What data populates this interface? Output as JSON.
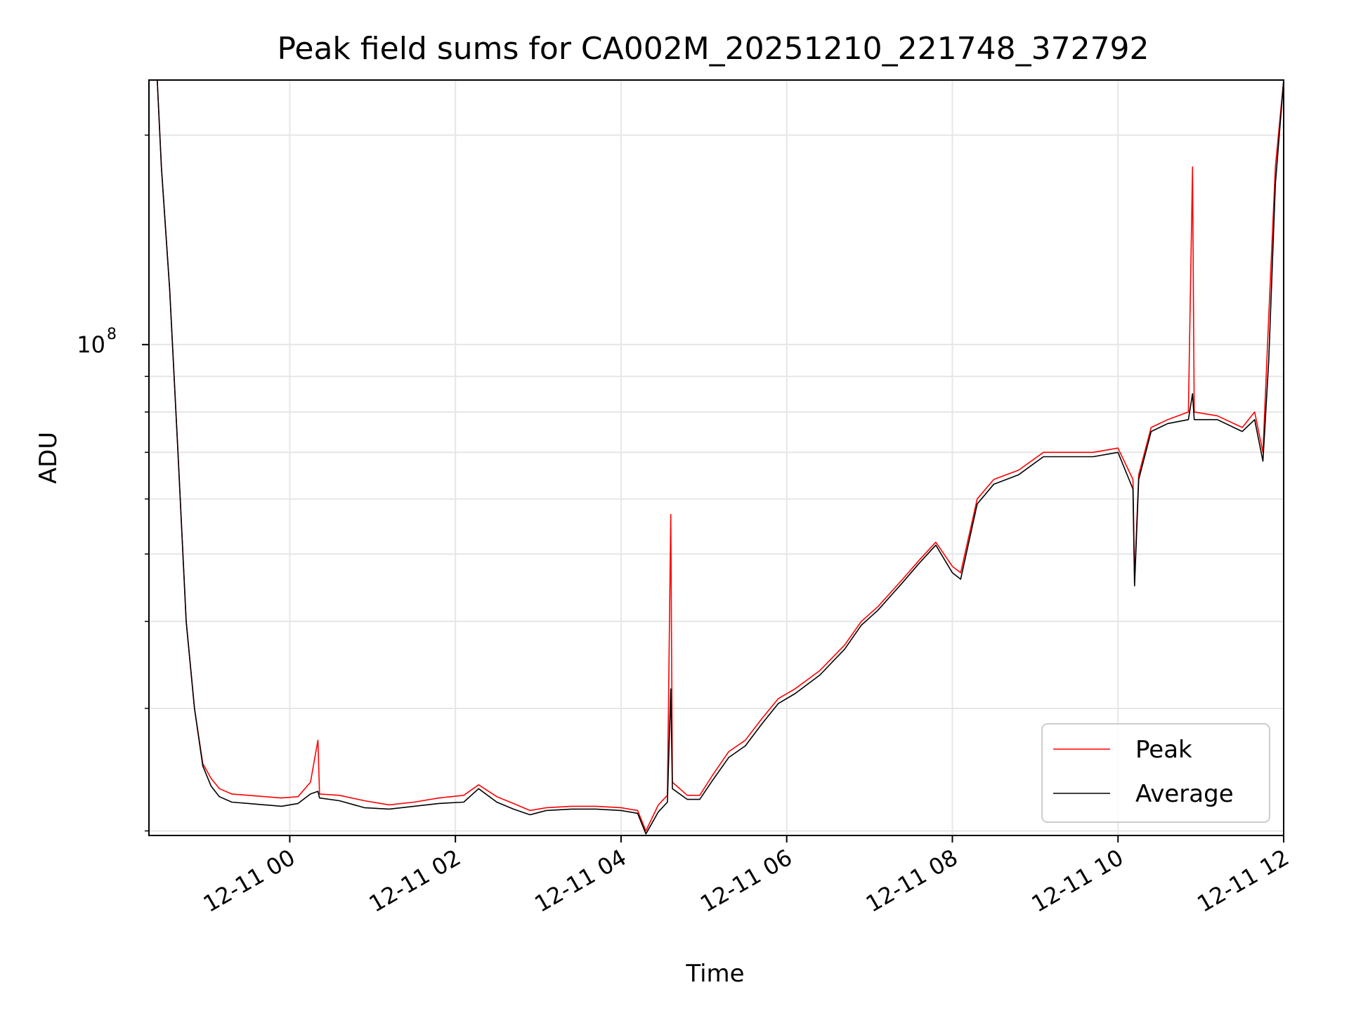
{
  "chart_data": {
    "type": "line",
    "title": "Peak field sums for CA002M_20251210_221748_372792",
    "xlabel": "Time",
    "ylabel": "ADU",
    "x_unit": "hours since 12-11 00:00",
    "xlim": [
      -1.7,
      12.0
    ],
    "yscale": "log",
    "ylim": [
      19700000,
      240000000
    ],
    "x_ticks": [
      {
        "value": 0,
        "label": "12-11 00"
      },
      {
        "value": 2,
        "label": "12-11 02"
      },
      {
        "value": 4,
        "label": "12-11 04"
      },
      {
        "value": 6,
        "label": "12-11 06"
      },
      {
        "value": 8,
        "label": "12-11 08"
      },
      {
        "value": 10,
        "label": "12-11 10"
      },
      {
        "value": 12,
        "label": "12-11 12"
      }
    ],
    "y_ticks_major": [
      {
        "value": 100000000,
        "base": "10",
        "exponent": "8"
      }
    ],
    "y_ticks_minor": [
      20000000,
      30000000,
      40000000,
      50000000,
      60000000,
      70000000,
      80000000,
      90000000,
      200000000
    ],
    "grid": true,
    "legend_position": "lower-right",
    "series": [
      {
        "name": "Peak",
        "color": "#ff0000",
        "points": [
          [
            -1.7,
            240000000
          ],
          [
            -1.6,
            240000000
          ],
          [
            -1.55,
            180000000
          ],
          [
            -1.45,
            120000000
          ],
          [
            -1.35,
            70000000
          ],
          [
            -1.25,
            40000000
          ],
          [
            -1.15,
            30000000
          ],
          [
            -1.05,
            25000000
          ],
          [
            -0.95,
            23800000
          ],
          [
            -0.85,
            23000000
          ],
          [
            -0.7,
            22600000
          ],
          [
            -0.5,
            22500000
          ],
          [
            -0.3,
            22400000
          ],
          [
            -0.1,
            22300000
          ],
          [
            0.1,
            22400000
          ],
          [
            0.25,
            23500000
          ],
          [
            0.34,
            27000000
          ],
          [
            0.36,
            22600000
          ],
          [
            0.6,
            22500000
          ],
          [
            0.9,
            22100000
          ],
          [
            1.2,
            21800000
          ],
          [
            1.5,
            22000000
          ],
          [
            1.8,
            22300000
          ],
          [
            2.1,
            22500000
          ],
          [
            2.28,
            23300000
          ],
          [
            2.5,
            22400000
          ],
          [
            2.7,
            21900000
          ],
          [
            2.9,
            21400000
          ],
          [
            3.1,
            21600000
          ],
          [
            3.4,
            21700000
          ],
          [
            3.7,
            21700000
          ],
          [
            4.0,
            21600000
          ],
          [
            4.2,
            21400000
          ],
          [
            4.3,
            20000000
          ],
          [
            4.45,
            21800000
          ],
          [
            4.56,
            22500000
          ],
          [
            4.6,
            57000000
          ],
          [
            4.62,
            23500000
          ],
          [
            4.8,
            22500000
          ],
          [
            4.95,
            22500000
          ],
          [
            5.1,
            24000000
          ],
          [
            5.3,
            26000000
          ],
          [
            5.5,
            27000000
          ],
          [
            5.7,
            29000000
          ],
          [
            5.9,
            31000000
          ],
          [
            6.1,
            32000000
          ],
          [
            6.4,
            34000000
          ],
          [
            6.7,
            37000000
          ],
          [
            6.9,
            40000000
          ],
          [
            7.1,
            42000000
          ],
          [
            7.4,
            46000000
          ],
          [
            7.6,
            49000000
          ],
          [
            7.8,
            52000000
          ],
          [
            8.0,
            48000000
          ],
          [
            8.1,
            47000000
          ],
          [
            8.3,
            60000000
          ],
          [
            8.5,
            64000000
          ],
          [
            8.8,
            66000000
          ],
          [
            9.1,
            70000000
          ],
          [
            9.4,
            70000000
          ],
          [
            9.7,
            70000000
          ],
          [
            10.0,
            71000000
          ],
          [
            10.18,
            64000000
          ],
          [
            10.2,
            46000000
          ],
          [
            10.25,
            65000000
          ],
          [
            10.4,
            76000000
          ],
          [
            10.6,
            78000000
          ],
          [
            10.85,
            80000000
          ],
          [
            10.9,
            180000000
          ],
          [
            10.92,
            80000000
          ],
          [
            11.2,
            79000000
          ],
          [
            11.5,
            76000000
          ],
          [
            11.65,
            80000000
          ],
          [
            11.75,
            70000000
          ],
          [
            11.82,
            110000000
          ],
          [
            11.9,
            180000000
          ],
          [
            12.0,
            240000000
          ]
        ]
      },
      {
        "name": "Average",
        "color": "#000000",
        "points": [
          [
            -1.7,
            240000000
          ],
          [
            -1.6,
            240000000
          ],
          [
            -1.55,
            180000000
          ],
          [
            -1.45,
            120000000
          ],
          [
            -1.35,
            70000000
          ],
          [
            -1.25,
            40000000
          ],
          [
            -1.15,
            30000000
          ],
          [
            -1.05,
            24800000
          ],
          [
            -0.95,
            23200000
          ],
          [
            -0.85,
            22400000
          ],
          [
            -0.7,
            22000000
          ],
          [
            -0.5,
            21900000
          ],
          [
            -0.3,
            21800000
          ],
          [
            -0.1,
            21700000
          ],
          [
            0.1,
            21900000
          ],
          [
            0.25,
            22600000
          ],
          [
            0.34,
            22800000
          ],
          [
            0.36,
            22300000
          ],
          [
            0.6,
            22100000
          ],
          [
            0.9,
            21600000
          ],
          [
            1.2,
            21500000
          ],
          [
            1.5,
            21700000
          ],
          [
            1.8,
            21900000
          ],
          [
            2.1,
            22000000
          ],
          [
            2.28,
            23000000
          ],
          [
            2.5,
            22000000
          ],
          [
            2.7,
            21500000
          ],
          [
            2.9,
            21100000
          ],
          [
            3.1,
            21400000
          ],
          [
            3.4,
            21500000
          ],
          [
            3.7,
            21500000
          ],
          [
            4.0,
            21400000
          ],
          [
            4.2,
            21200000
          ],
          [
            4.3,
            19800000
          ],
          [
            4.45,
            21300000
          ],
          [
            4.56,
            22000000
          ],
          [
            4.6,
            32000000
          ],
          [
            4.62,
            23000000
          ],
          [
            4.8,
            22200000
          ],
          [
            4.95,
            22200000
          ],
          [
            5.1,
            23600000
          ],
          [
            5.3,
            25500000
          ],
          [
            5.5,
            26500000
          ],
          [
            5.7,
            28500000
          ],
          [
            5.9,
            30500000
          ],
          [
            6.1,
            31500000
          ],
          [
            6.4,
            33500000
          ],
          [
            6.7,
            36500000
          ],
          [
            6.9,
            39500000
          ],
          [
            7.1,
            41500000
          ],
          [
            7.4,
            45500000
          ],
          [
            7.6,
            48500000
          ],
          [
            7.8,
            51500000
          ],
          [
            8.0,
            47000000
          ],
          [
            8.1,
            46000000
          ],
          [
            8.3,
            59000000
          ],
          [
            8.5,
            63000000
          ],
          [
            8.8,
            65000000
          ],
          [
            9.1,
            69000000
          ],
          [
            9.4,
            69000000
          ],
          [
            9.7,
            69000000
          ],
          [
            10.0,
            70000000
          ],
          [
            10.18,
            62000000
          ],
          [
            10.2,
            45000000
          ],
          [
            10.25,
            64000000
          ],
          [
            10.4,
            75000000
          ],
          [
            10.6,
            77000000
          ],
          [
            10.85,
            78000000
          ],
          [
            10.9,
            85000000
          ],
          [
            10.92,
            78000000
          ],
          [
            11.2,
            78000000
          ],
          [
            11.5,
            75000000
          ],
          [
            11.65,
            78000000
          ],
          [
            11.75,
            68000000
          ],
          [
            11.82,
            95000000
          ],
          [
            11.9,
            170000000
          ],
          [
            12.0,
            240000000
          ]
        ]
      }
    ]
  }
}
